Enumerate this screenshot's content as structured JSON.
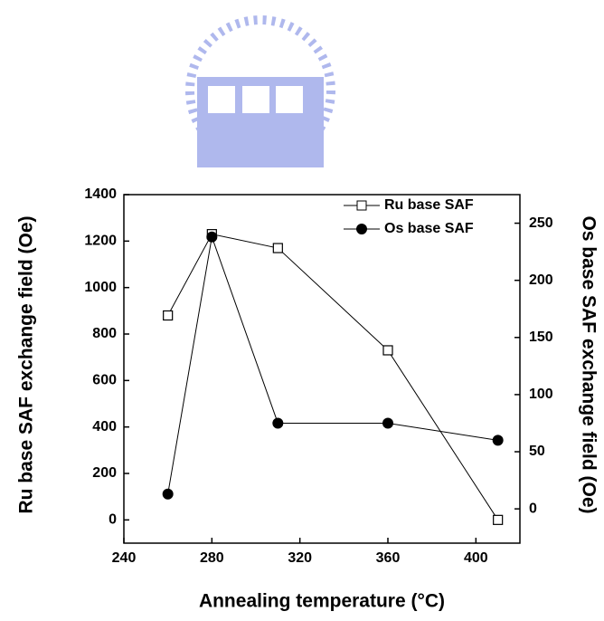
{
  "chart_data": {
    "type": "line",
    "x_label": "Annealing temperature (°C)",
    "y_label": "Ru base SAF exchange field (Oe)",
    "y2_label": "Os base SAF exchange field (Oe)",
    "x": [
      260,
      280,
      310,
      360,
      410
    ],
    "series": [
      {
        "name": "Ru base SAF",
        "color": "#000000",
        "marker": "square-open",
        "values": [
          880,
          1230,
          1170,
          730,
          0
        ]
      },
      {
        "name": "Os base SAF",
        "color": "#000000",
        "marker": "circle-filled",
        "axis": "y2",
        "values": [
          13,
          238,
          75,
          75,
          60
        ]
      }
    ],
    "xlim": [
      240,
      420
    ],
    "xticks": [
      240,
      280,
      320,
      360,
      400
    ],
    "ylim": [
      -100,
      1400
    ],
    "yticks": [
      0,
      200,
      400,
      600,
      800,
      1000,
      1200,
      1400
    ],
    "y2lim": [
      -30,
      275
    ],
    "y2ticks": [
      0,
      50,
      100,
      150,
      200,
      250
    ],
    "legend": "top-right"
  }
}
